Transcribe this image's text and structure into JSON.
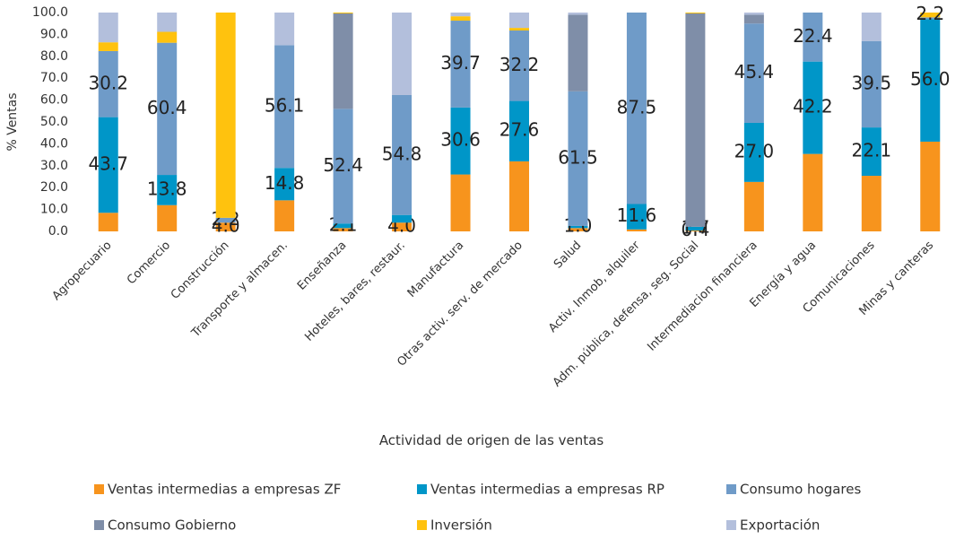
{
  "chart_data": {
    "type": "stacked_bar",
    "xlabel": "Actividad de origen de las ventas",
    "ylabel": "% Ventas",
    "categories": [
      "Agropecuario",
      "Comercio",
      "Construcción",
      "Transporte y almacen.",
      "Enseñanza",
      "Hoteles, bares, restaur.",
      "Manufactura",
      "Otras activ. serv. de mercado",
      "Salud",
      "Activ. Inmob,  alquiler",
      "Adm. pública, defensa, seg. Social",
      "Intermediacion financiera",
      "Energía y agua",
      "Comunicaciones",
      "Minas y canteras"
    ],
    "ylim": [
      0,
      100
    ],
    "yticks": [
      {
        "value": 0,
        "label": "0.0"
      },
      {
        "value": 10,
        "label": "10.0"
      },
      {
        "value": 20,
        "label": "20.0"
      },
      {
        "value": 30,
        "label": "30.0"
      },
      {
        "value": 40,
        "label": "40.0"
      },
      {
        "value": 50,
        "label": "50.0"
      },
      {
        "value": 60,
        "label": "60.0"
      },
      {
        "value": 70,
        "label": "70.0"
      },
      {
        "value": 80,
        "label": "80.0"
      },
      {
        "value": 90,
        "label": "90.0"
      },
      {
        "value": 100,
        "label": "100.0"
      }
    ],
    "series": [
      {
        "name": "Ventas intermedias a empresas ZF",
        "color": "#f7941d",
        "values": [
          8.5,
          12.0,
          4.0,
          14.2,
          1.5,
          4.0,
          26.0,
          32.0,
          1.5,
          0.9,
          0.4,
          22.6,
          35.4,
          25.4,
          41.0
        ],
        "value_labels": [
          null,
          null,
          "4.0",
          null,
          null,
          "4.0",
          null,
          null,
          null,
          null,
          "0.4",
          null,
          null,
          null,
          null
        ]
      },
      {
        "name": "Ventas intermedias a empresas RP",
        "color": "#0096c8",
        "values": [
          43.7,
          13.8,
          0,
          14.8,
          2.1,
          3.5,
          30.6,
          27.6,
          1.0,
          11.6,
          1.7,
          27.0,
          42.2,
          22.1,
          56.0
        ],
        "value_labels": [
          "43.7",
          "13.8",
          null,
          "14.8",
          "2.1",
          null,
          "30.6",
          "27.6",
          "1.0",
          "11.6",
          "1.7",
          "27.0",
          "42.2",
          "22.1",
          "56.0"
        ]
      },
      {
        "name": "Consumo hogares",
        "color": "#6f9bc8",
        "values": [
          30.2,
          60.4,
          2.2,
          56.1,
          52.4,
          54.8,
          39.7,
          32.2,
          61.5,
          87.5,
          0,
          45.4,
          22.4,
          39.5,
          0.8
        ],
        "value_labels": [
          "30.2",
          "60.4",
          "2.2",
          "56.1",
          "52.4",
          "54.8",
          "39.7",
          "32.2",
          "61.5",
          "87.5",
          null,
          "45.4",
          "22.4",
          "39.5",
          null
        ]
      },
      {
        "name": "Consumo Gobierno",
        "color": "#7f8ea8",
        "values": [
          0,
          0,
          0,
          0,
          43.6,
          0,
          0,
          0,
          35.0,
          0,
          97.5,
          4.0,
          0,
          0,
          0
        ],
        "value_labels": [
          null,
          null,
          null,
          null,
          null,
          null,
          null,
          null,
          null,
          null,
          null,
          null,
          null,
          null,
          null
        ]
      },
      {
        "name": "Inversión",
        "color": "#ffc20e",
        "values": [
          4.0,
          5.0,
          93.8,
          0,
          0.4,
          0,
          2.0,
          1.2,
          0,
          0,
          0.4,
          0,
          0,
          0,
          2.2
        ],
        "value_labels": [
          null,
          null,
          null,
          null,
          null,
          null,
          null,
          null,
          null,
          null,
          null,
          null,
          null,
          null,
          "2.2"
        ]
      },
      {
        "name": "Exportación",
        "color": "#b3bfdc",
        "values": [
          13.6,
          8.8,
          0,
          14.9,
          0,
          37.7,
          1.7,
          7.0,
          1.0,
          0,
          0,
          1.0,
          0,
          13.0,
          0
        ],
        "value_labels": [
          null,
          null,
          null,
          null,
          null,
          null,
          null,
          null,
          null,
          null,
          null,
          null,
          null,
          null,
          null
        ]
      }
    ]
  }
}
